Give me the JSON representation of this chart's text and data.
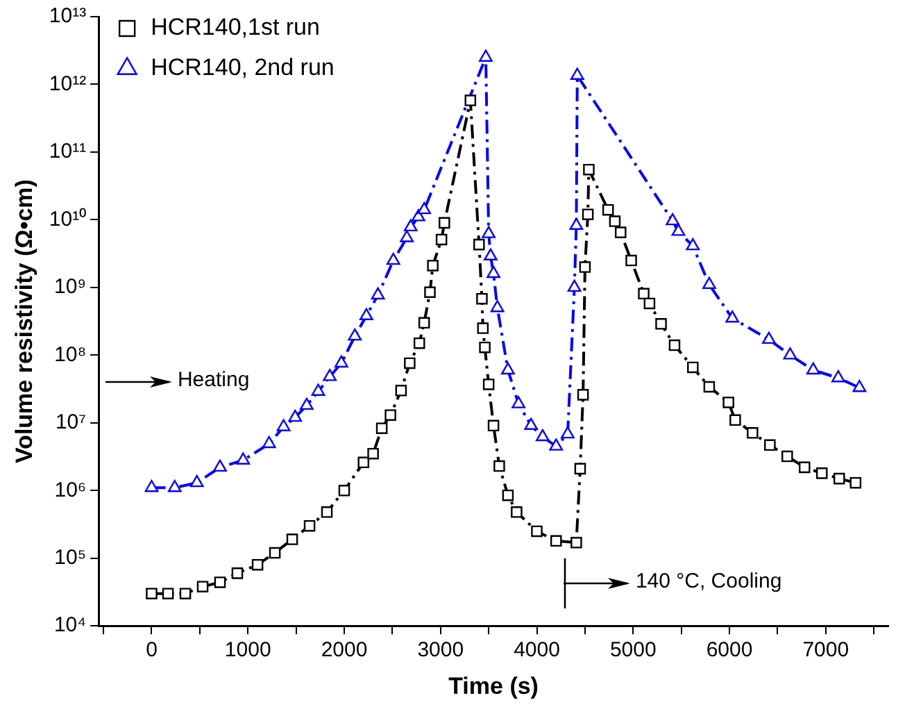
{
  "chart_data": {
    "type": "line",
    "xlabel": "Time (s)",
    "ylabel": "Volume resistivity (Ω•cm)",
    "log": "y",
    "grid": false,
    "legend": "top left",
    "line_style": "dashed",
    "xlim": [
      -550,
      7650
    ],
    "xticks": [
      {
        "value": -500,
        "label": null
      },
      0,
      {
        "value": 500,
        "label": null
      },
      1000,
      {
        "value": 1500,
        "label": null
      },
      2000,
      {
        "value": 2500,
        "label": null
      },
      3000,
      {
        "value": 3500,
        "label": null
      },
      4000,
      {
        "value": 4500,
        "label": null
      },
      5000,
      {
        "value": 5500,
        "label": null
      },
      6000,
      {
        "value": 6500,
        "label": null
      },
      7000,
      {
        "value": 7500,
        "label": null
      }
    ],
    "ylim": [
      10000,
      10000000000000
    ],
    "yticks": [
      {
        "value": 10000.0,
        "label": "10⁴"
      },
      {
        "value": 100000.0,
        "label": "10⁵"
      },
      {
        "value": 1000000.0,
        "label": "10⁶"
      },
      {
        "value": 10000000.0,
        "label": "10⁷"
      },
      {
        "value": 100000000.0,
        "label": "10⁸"
      },
      {
        "value": 1000000000.0,
        "label": "10⁹"
      },
      {
        "value": 10000000000.0,
        "label": "10¹⁰"
      },
      {
        "value": 100000000000.0,
        "label": "10¹¹"
      },
      {
        "value": 1000000000000.0,
        "label": "10¹²"
      },
      {
        "value": 10000000000000.0,
        "label": "10¹³"
      }
    ],
    "annotations": [
      "Heating",
      "140 °C, Cooling"
    ],
    "series": [
      {
        "name": "HCR140,1st run",
        "color": "#000000",
        "marker": "square",
        "x": [
          0,
          170,
          350,
          530,
          710,
          890,
          1100,
          1280,
          1460,
          1640,
          1820,
          2000,
          2200,
          2300,
          2390,
          2480,
          2590,
          2680,
          2780,
          2830,
          2890,
          2920,
          3010,
          3040,
          3310,
          3400,
          3430,
          3440,
          3460,
          3500,
          3550,
          3610,
          3700,
          3790,
          4000,
          4200,
          4410,
          4450,
          4480,
          4500,
          4530,
          4540,
          4740,
          4810,
          4870,
          4980,
          5110,
          5170,
          5290,
          5430,
          5620,
          5790,
          5990,
          6060,
          6240,
          6420,
          6600,
          6780,
          6960,
          7140,
          7310
        ],
        "values": [
          30000.0,
          30000.0,
          30000.0,
          38000.0,
          44000.0,
          60000.0,
          80000.0,
          120000.0,
          190000.0,
          300000.0,
          480000.0,
          1000000.0,
          2600000.0,
          3500000.0,
          8300000.0,
          13000000.0,
          30000000.0,
          76000000.0,
          150000000.0,
          300000000.0,
          850000000.0,
          2100000000.0,
          5100000000.0,
          9000000000.0,
          580000000000.0,
          4300000000.0,
          680000000.0,
          250000000.0,
          130000000.0,
          37000000.0,
          9100000.0,
          2300000.0,
          850000.0,
          480000.0,
          250000.0,
          180000.0,
          170000.0,
          2100000.0,
          26000000.0,
          2000000000.0,
          12000000000.0,
          55000000000.0,
          14000000000.0,
          9500000000.0,
          6500000000.0,
          2500000000.0,
          810000000.0,
          580000000.0,
          290000000.0,
          140000000.0,
          66000000.0,
          34000000.0,
          20000000.0,
          11000000.0,
          7100000.0,
          4700000.0,
          3200000.0,
          2200000.0,
          1800000.0,
          1500000.0,
          1300000.0
        ]
      },
      {
        "name": "HCR140, 2nd run",
        "color": "#0000ff",
        "marker": "triangle",
        "x": [
          0,
          240,
          470,
          710,
          950,
          1220,
          1370,
          1490,
          1610,
          1730,
          1850,
          1970,
          2110,
          2230,
          2350,
          2510,
          2650,
          2690,
          2770,
          2830,
          3470,
          3500,
          3520,
          3550,
          3590,
          3700,
          3810,
          3940,
          4060,
          4200,
          4320,
          4390,
          4410,
          4420,
          5410,
          5470,
          5620,
          5790,
          6030,
          6410,
          6630,
          6870,
          7130,
          7350
        ],
        "values": [
          1100000.0,
          1100000.0,
          1300000.0,
          2200000.0,
          2800000.0,
          4900000.0,
          8700000.0,
          12000000.0,
          18000000.0,
          29000000.0,
          48000000.0,
          76000000.0,
          190000000.0,
          380000000.0,
          770000000.0,
          2500000000.0,
          5400000000.0,
          7800000000.0,
          11000000000.0,
          14000000000.0,
          2500000000000.0,
          6200000000.0,
          2900000000.0,
          1600000000.0,
          500000000.0,
          60000000.0,
          19000000.0,
          9100000.0,
          6200000.0,
          4500000.0,
          6800000.0,
          1000000000.0,
          8200000000.0,
          1350000000000.0,
          9600000000.0,
          6700000000.0,
          4100000000.0,
          1100000000.0,
          350000000.0,
          170000000.0,
          100000000.0,
          60000000.0,
          46000000.0,
          33000000.0
        ]
      }
    ]
  }
}
